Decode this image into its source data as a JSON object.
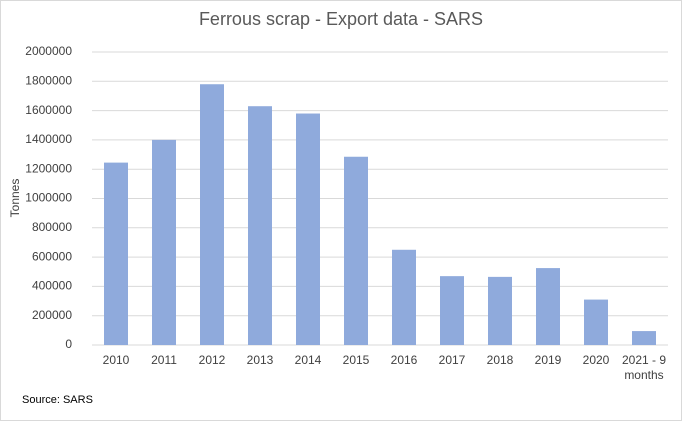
{
  "chart_data": {
    "type": "bar",
    "title": "Ferrous scrap - Export data - SARS",
    "ylabel": "Tonnes",
    "source": "Source: SARS",
    "categories": [
      "2010",
      "2011",
      "2012",
      "2013",
      "2014",
      "2015",
      "2016",
      "2017",
      "2018",
      "2019",
      "2020",
      "2021 - 9 months"
    ],
    "values": [
      1245000,
      1400000,
      1780000,
      1630000,
      1580000,
      1285000,
      650000,
      470000,
      465000,
      525000,
      310000,
      95000
    ],
    "color": "#8faadc",
    "ylim": [
      0,
      2000000
    ],
    "yticks": [
      0,
      200000,
      400000,
      600000,
      800000,
      1000000,
      1200000,
      1400000,
      1600000,
      1800000,
      2000000
    ],
    "grid": true
  }
}
